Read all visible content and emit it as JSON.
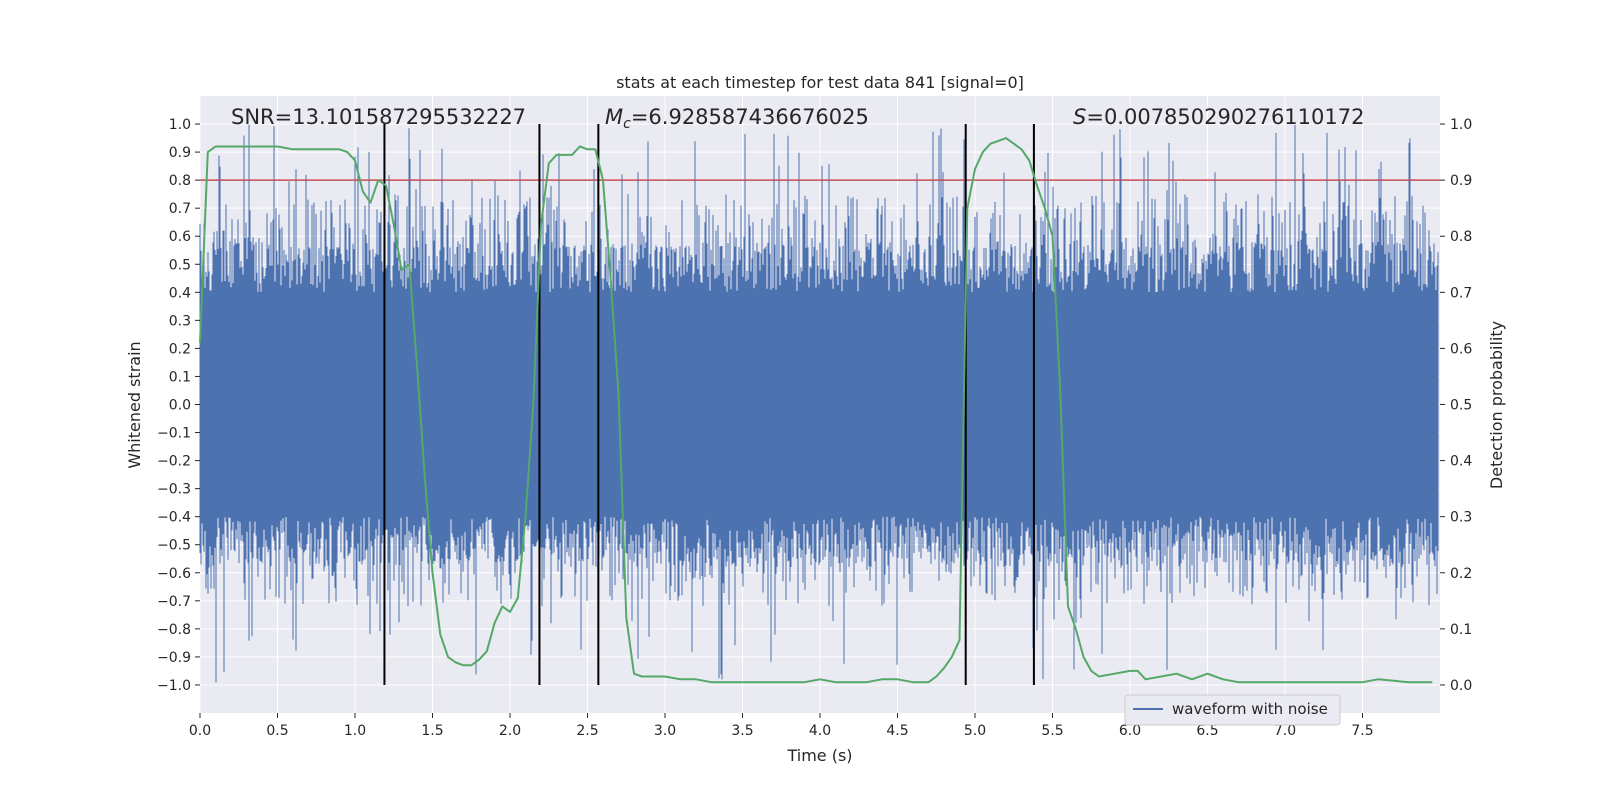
{
  "chart_data": {
    "type": "line",
    "title": "stats at each timestep for test data 841 [signal=0]",
    "xlabel": "Time (s)",
    "ylabel": "Whitened strain",
    "ylabel_right": "Detection probability",
    "xlim": [
      0.0,
      8.0
    ],
    "ylim": [
      -1.1,
      1.1
    ],
    "ylim_right": [
      -0.05,
      1.05
    ],
    "x_ticks": [
      0.0,
      0.5,
      1.0,
      1.5,
      2.0,
      2.5,
      3.0,
      3.5,
      4.0,
      4.5,
      5.0,
      5.5,
      6.0,
      6.5,
      7.0,
      7.5
    ],
    "x_tick_labels": [
      "0.0",
      "0.5",
      "1.0",
      "1.5",
      "2.0",
      "2.5",
      "3.0",
      "3.5",
      "4.0",
      "4.5",
      "5.0",
      "5.5",
      "6.0",
      "6.5",
      "7.0",
      "7.5"
    ],
    "y_ticks": [
      1.0,
      0.9,
      0.8,
      0.7,
      0.6,
      0.5,
      0.4,
      0.3,
      0.2,
      0.1,
      0.0,
      -0.1,
      -0.2,
      -0.3,
      -0.4,
      -0.5,
      -0.6,
      -0.7,
      -0.8,
      -0.9,
      -1.0
    ],
    "y_tick_labels": [
      "1.0",
      "0.9",
      "0.8",
      "0.7",
      "0.6",
      "0.5",
      "0.4",
      "0.3",
      "0.2",
      "0.1",
      "0.0",
      "−0.1",
      "−0.2",
      "−0.3",
      "−0.4",
      "−0.5",
      "−0.6",
      "−0.7",
      "−0.8",
      "−0.9",
      "−1.0"
    ],
    "y_ticks_right": [
      1.0,
      0.9,
      0.8,
      0.7,
      0.6,
      0.5,
      0.4,
      0.3,
      0.2,
      0.1,
      0.0
    ],
    "y_tick_labels_right": [
      "1.0",
      "0.9",
      "0.8",
      "0.7",
      "0.6",
      "0.5",
      "0.4",
      "0.3",
      "0.2",
      "0.1",
      "0.0"
    ],
    "grid": true,
    "legend": {
      "entries": [
        "waveform with noise"
      ],
      "placement": "lower-right"
    },
    "annotations": {
      "snr": "SNR=13.101587295532227",
      "mc_symbol": "M",
      "mc_sub": "c",
      "mc_value": "=6.928587436676025",
      "s_symbol": "S",
      "s_value": "=0.007850290276110172"
    },
    "waveform": {
      "name": "waveform with noise",
      "color": "#4c72b0",
      "t_start": 0.0,
      "t_end": 7.99,
      "core_amplitude": 0.4,
      "peak_range": [
        0.75,
        1.0
      ]
    },
    "threshold": {
      "value": 0.8,
      "color": "#c44e52"
    },
    "vertical_markers": {
      "x": [
        1.19,
        2.19,
        2.57,
        4.94,
        5.38
      ],
      "ymin": -1.0,
      "ymax": 1.0,
      "color": "#000000"
    },
    "probability": {
      "name": "detection probability",
      "color": "#55a868",
      "x": [
        0.0,
        0.05,
        0.1,
        0.15,
        0.2,
        0.3,
        0.4,
        0.5,
        0.6,
        0.7,
        0.8,
        0.9,
        0.95,
        1.0,
        1.05,
        1.1,
        1.15,
        1.2,
        1.25,
        1.3,
        1.35,
        1.4,
        1.45,
        1.5,
        1.55,
        1.6,
        1.65,
        1.7,
        1.75,
        1.8,
        1.85,
        1.9,
        1.95,
        2.0,
        2.05,
        2.1,
        2.15,
        2.2,
        2.25,
        2.3,
        2.35,
        2.4,
        2.45,
        2.5,
        2.55,
        2.6,
        2.65,
        2.7,
        2.75,
        2.8,
        2.85,
        2.9,
        3.0,
        3.1,
        3.2,
        3.3,
        3.4,
        3.5,
        3.6,
        3.7,
        3.8,
        3.9,
        4.0,
        4.1,
        4.2,
        4.3,
        4.4,
        4.5,
        4.6,
        4.65,
        4.7,
        4.75,
        4.8,
        4.85,
        4.9,
        4.95,
        5.0,
        5.05,
        5.1,
        5.15,
        5.2,
        5.25,
        5.3,
        5.35,
        5.4,
        5.45,
        5.5,
        5.55,
        5.6,
        5.65,
        5.7,
        5.75,
        5.8,
        5.9,
        6.0,
        6.05,
        6.1,
        6.2,
        6.3,
        6.4,
        6.5,
        6.6,
        6.7,
        6.8,
        6.9,
        7.0,
        7.2,
        7.4,
        7.5,
        7.6,
        7.8,
        7.95
      ],
      "y": [
        0.61,
        0.95,
        0.96,
        0.96,
        0.96,
        0.96,
        0.96,
        0.96,
        0.955,
        0.955,
        0.955,
        0.955,
        0.95,
        0.935,
        0.88,
        0.86,
        0.9,
        0.89,
        0.82,
        0.74,
        0.75,
        0.57,
        0.37,
        0.2,
        0.09,
        0.05,
        0.04,
        0.035,
        0.035,
        0.045,
        0.06,
        0.11,
        0.14,
        0.13,
        0.155,
        0.3,
        0.5,
        0.82,
        0.93,
        0.945,
        0.945,
        0.945,
        0.96,
        0.955,
        0.955,
        0.9,
        0.72,
        0.52,
        0.12,
        0.02,
        0.015,
        0.015,
        0.015,
        0.01,
        0.01,
        0.005,
        0.005,
        0.005,
        0.005,
        0.005,
        0.005,
        0.005,
        0.01,
        0.005,
        0.005,
        0.005,
        0.01,
        0.01,
        0.005,
        0.005,
        0.005,
        0.015,
        0.03,
        0.05,
        0.08,
        0.85,
        0.92,
        0.95,
        0.965,
        0.97,
        0.975,
        0.965,
        0.955,
        0.935,
        0.89,
        0.85,
        0.8,
        0.52,
        0.14,
        0.1,
        0.05,
        0.025,
        0.015,
        0.02,
        0.025,
        0.025,
        0.01,
        0.015,
        0.02,
        0.01,
        0.02,
        0.01,
        0.005,
        0.005,
        0.005,
        0.005,
        0.005,
        0.005,
        0.005,
        0.01,
        0.005,
        0.005
      ]
    }
  }
}
